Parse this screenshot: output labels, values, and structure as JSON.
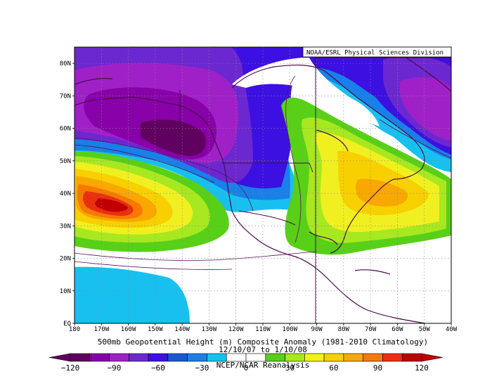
{
  "header": {
    "credit": "NOAA/ESRL Physical Sciences Division"
  },
  "axes": {
    "lat_labels": [
      "80N",
      "70N",
      "60N",
      "50N",
      "40N",
      "30N",
      "20N",
      "10N",
      "EQ"
    ],
    "lon_labels": [
      "180",
      "170W",
      "160W",
      "150W",
      "140W",
      "130W",
      "120W",
      "110W",
      "100W",
      "90W",
      "80W",
      "70W",
      "60W",
      "50W",
      "40W"
    ],
    "lat_range": [
      0,
      85
    ],
    "lon_range": [
      -180,
      -40
    ]
  },
  "caption": {
    "title": "500mb Geopotential Height (m) Composite Anomaly (1981-2010 Climatology)",
    "dates": "12/10/07  to 1/10/08",
    "source": "NCEP/NCAR Reanalysis"
  },
  "colorbar": {
    "labels": [
      "−120",
      "−90",
      "−60",
      "−30",
      "0",
      "30",
      "60",
      "90",
      "120"
    ],
    "colors": [
      "#600060",
      "#8800a8",
      "#a020c8",
      "#6c28d0",
      "#3c10e0",
      "#1858d8",
      "#1880e8",
      "#18c0f0",
      "#ffffff",
      "#ffffff",
      "#58d018",
      "#a8e820",
      "#f0f020",
      "#f8d000",
      "#f8a800",
      "#f87800",
      "#e83010",
      "#c00000"
    ]
  },
  "chart_data": {
    "type": "map",
    "variable": "500mb Geopotential Height (m) Composite Anomaly",
    "contour_levels": [
      -120,
      -105,
      -90,
      -75,
      -60,
      -45,
      -30,
      -15,
      0,
      15,
      30,
      45,
      60,
      75,
      90,
      105,
      120
    ],
    "features": [
      {
        "sign": "positive",
        "lon": -164,
        "lat": 36,
        "peak_approx": 120
      },
      {
        "sign": "positive",
        "lon": -72,
        "lat": 40,
        "peak_approx": 75
      },
      {
        "sign": "negative",
        "lon": -145,
        "lat": 58,
        "peak_approx": -105
      },
      {
        "sign": "negative",
        "lon": -160,
        "lat": 68,
        "peak_approx": -90
      },
      {
        "sign": "negative",
        "lon": -48,
        "lat": 63,
        "peak_approx": -90
      },
      {
        "sign": "negative",
        "lon": -150,
        "lat": 8,
        "peak_approx": -30
      }
    ]
  }
}
